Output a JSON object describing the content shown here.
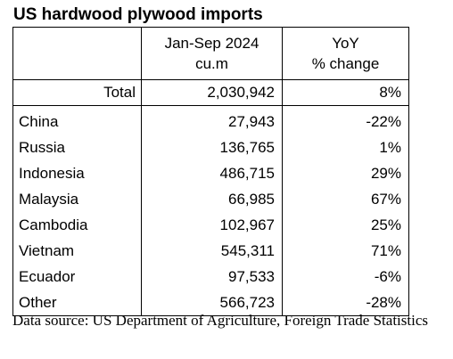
{
  "title": "US hardwood plywood imports",
  "table": {
    "headers": {
      "col1": "",
      "col2_line1": "Jan-Sep 2024",
      "col2_line2": "cu.m",
      "col3_line1": "YoY",
      "col3_line2": "% change"
    },
    "total": {
      "label": "Total",
      "volume": "2,030,942",
      "yoy": "8%"
    },
    "rows": [
      {
        "country": "China",
        "volume": "27,943",
        "yoy": "-22%"
      },
      {
        "country": "Russia",
        "volume": "136,765",
        "yoy": "1%"
      },
      {
        "country": "Indonesia",
        "volume": "486,715",
        "yoy": "29%"
      },
      {
        "country": "Malaysia",
        "volume": "66,985",
        "yoy": "67%"
      },
      {
        "country": "Cambodia",
        "volume": "102,967",
        "yoy": "25%"
      },
      {
        "country": "Vietnam",
        "volume": "545,311",
        "yoy": "71%"
      },
      {
        "country": "Ecuador",
        "volume": "97,533",
        "yoy": "-6%"
      },
      {
        "country": "Other",
        "volume": "566,723",
        "yoy": "-28%"
      }
    ]
  },
  "source": "Data source: US Department of Agriculture, Foreign Trade Statistics"
}
